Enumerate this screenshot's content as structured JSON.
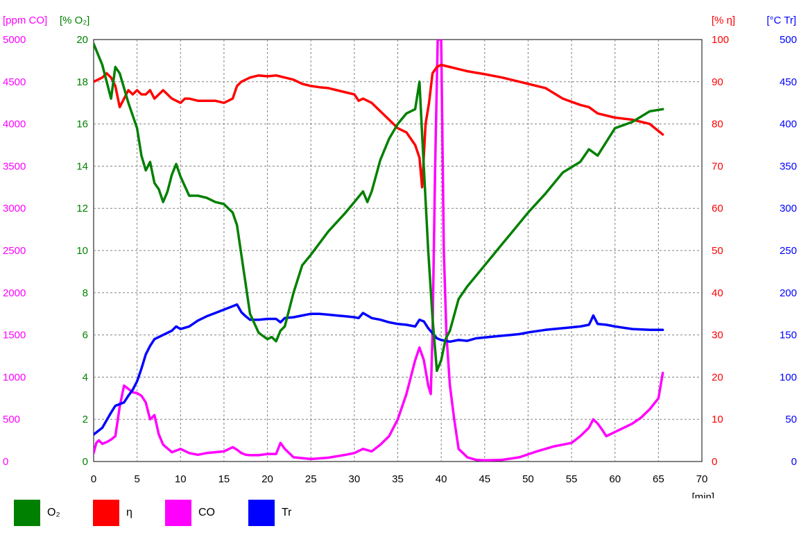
{
  "chart_data": {
    "type": "line",
    "axes": {
      "x": {
        "range": [
          0,
          70
        ],
        "ticks": [
          "0",
          "5",
          "10",
          "15",
          "20",
          "25",
          "30",
          "35",
          "40",
          "45",
          "50",
          "55",
          "60",
          "65",
          "70"
        ],
        "unit_label": "[min]"
      },
      "co": {
        "label": "[ppm CO]",
        "range": [
          0,
          5000
        ],
        "ticks": [
          "0",
          "500",
          "1000",
          "1500",
          "2000",
          "2500",
          "3000",
          "3500",
          "4000",
          "4500",
          "5000"
        ],
        "color": "#ff00ff"
      },
      "o2": {
        "label": "[% O₂]",
        "range": [
          0,
          20
        ],
        "ticks": [
          "0",
          "2",
          "4",
          "6",
          "8",
          "10",
          "12",
          "14",
          "16",
          "18",
          "20"
        ],
        "color": "#008000"
      },
      "eta": {
        "label": "[% η]",
        "range": [
          0,
          100
        ],
        "ticks": [
          "0",
          "10",
          "20",
          "30",
          "40",
          "50",
          "60",
          "70",
          "80",
          "90",
          "100"
        ],
        "color": "#ff0000"
      },
      "tr": {
        "label": "[°C Tr]",
        "range": [
          0,
          500
        ],
        "ticks": [
          "0",
          "50",
          "100",
          "150",
          "200",
          "250",
          "300",
          "350",
          "400",
          "450",
          "500"
        ],
        "color": "#0000ff"
      }
    },
    "grid": true,
    "legend_position": "bottom",
    "series": [
      {
        "name": "O₂",
        "axis": "o2",
        "color": "#008000",
        "x": [
          0,
          1,
          2,
          2.5,
          3,
          4,
          5,
          5.5,
          6,
          6.5,
          7,
          7.5,
          8,
          8.5,
          9,
          9.5,
          10,
          11,
          12,
          13,
          14,
          15,
          16,
          16.5,
          17,
          18,
          19,
          20,
          20.5,
          21,
          21.5,
          22,
          23,
          24,
          25,
          27,
          29,
          30,
          31,
          31.5,
          32,
          33,
          34,
          35,
          36,
          37,
          37.5,
          37.8,
          38.5,
          39,
          39.5,
          40,
          40.5,
          41,
          42,
          43,
          44,
          45,
          46,
          47,
          48,
          50,
          52,
          54,
          56,
          57,
          58,
          60,
          62,
          64,
          65.5
        ],
        "y": [
          19.8,
          18.8,
          17.2,
          18.7,
          18.4,
          17,
          15.8,
          14.5,
          13.8,
          14.2,
          13.2,
          12.9,
          12.3,
          12.8,
          13.6,
          14.1,
          13.5,
          12.6,
          12.6,
          12.5,
          12.3,
          12.2,
          11.8,
          11.2,
          9.8,
          7,
          6.1,
          5.8,
          5.9,
          5.7,
          6.2,
          6.4,
          8,
          9.3,
          9.8,
          10.9,
          11.8,
          12.3,
          12.8,
          12.3,
          12.8,
          14.3,
          15.3,
          16,
          16.5,
          16.7,
          18,
          15.5,
          10,
          6.8,
          4.3,
          4.8,
          5.8,
          6.2,
          7.7,
          8.3,
          8.8,
          9.3,
          9.8,
          10.3,
          10.8,
          11.8,
          12.7,
          13.7,
          14.2,
          14.8,
          14.5,
          15.8,
          16.1,
          16.6,
          16.7
        ]
      },
      {
        "name": "η",
        "axis": "eta",
        "color": "#ff0000",
        "x": [
          0,
          1,
          1.5,
          2,
          2.5,
          3,
          4,
          4.5,
          5,
          5.5,
          6,
          6.5,
          7,
          8,
          8.5,
          9,
          10,
          10.5,
          11,
          12,
          13,
          14,
          15,
          16,
          16.5,
          17,
          18,
          19,
          20,
          21,
          22,
          23,
          24,
          25,
          26,
          27,
          28,
          29,
          30,
          30.5,
          31,
          32,
          33,
          34,
          35,
          36,
          37,
          37.5,
          37.8,
          38.2,
          38.6,
          39,
          39.5,
          40,
          41,
          42,
          43,
          45,
          47,
          50,
          52,
          54,
          56,
          57,
          58,
          60,
          62,
          64,
          65.5
        ],
        "y": [
          90,
          91,
          92,
          91,
          89,
          84,
          88,
          87,
          88,
          87,
          87,
          88,
          86,
          88,
          87,
          86,
          85,
          86,
          86,
          85.5,
          85.5,
          85.5,
          85,
          86,
          89,
          90,
          91,
          91.5,
          91.3,
          91.5,
          91,
          90.5,
          89.5,
          89,
          88.7,
          88.5,
          88,
          87.5,
          87,
          85.5,
          86,
          85,
          83,
          81,
          79,
          78,
          75,
          72,
          65,
          80,
          85,
          92,
          93.5,
          94,
          93.5,
          93,
          92.5,
          91.8,
          91,
          89.5,
          88.5,
          86,
          84.5,
          84,
          82.5,
          81.5,
          81,
          80,
          77.5
        ]
      },
      {
        "name": "CO",
        "axis": "co",
        "color": "#ff00ff",
        "x": [
          0,
          0.3,
          0.6,
          1,
          1.5,
          2,
          2.5,
          3,
          3.5,
          4,
          4.5,
          5,
          5.5,
          6,
          6.5,
          7,
          7.5,
          8,
          9,
          10,
          11,
          12,
          13,
          14,
          15,
          16,
          16.5,
          17,
          17.5,
          18,
          19,
          20,
          21,
          21.5,
          22,
          23,
          25,
          27,
          29,
          30,
          31,
          32,
          33,
          34,
          35,
          36,
          37,
          37.5,
          38,
          38.5,
          38.8,
          39,
          39.3,
          39.6,
          40,
          40.3,
          40.6,
          41,
          41.5,
          42,
          42.5,
          43,
          44,
          45,
          47,
          49,
          51,
          53,
          55,
          56,
          57,
          57.5,
          58,
          58.5,
          59,
          60,
          61,
          62,
          63,
          64,
          65,
          65.5
        ],
        "y": [
          100,
          220,
          250,
          210,
          230,
          260,
          300,
          650,
          900,
          860,
          820,
          810,
          780,
          700,
          500,
          550,
          320,
          200,
          110,
          150,
          100,
          80,
          100,
          110,
          120,
          170,
          140,
          100,
          80,
          75,
          75,
          90,
          90,
          220,
          150,
          50,
          30,
          45,
          80,
          100,
          150,
          120,
          200,
          300,
          500,
          800,
          1200,
          1350,
          1200,
          900,
          800,
          1500,
          3500,
          5000,
          5000,
          2500,
          1500,
          900,
          500,
          150,
          100,
          50,
          20,
          15,
          20,
          50,
          120,
          180,
          220,
          300,
          400,
          500,
          450,
          380,
          300,
          350,
          400,
          450,
          520,
          620,
          750,
          1050
        ]
      },
      {
        "name": "Tr",
        "axis": "tr",
        "color": "#0000ff",
        "x": [
          0,
          1,
          2,
          2.5,
          3,
          3.5,
          4,
          4.5,
          5,
          5.5,
          6,
          6.5,
          7,
          8,
          9,
          9.5,
          10,
          11,
          12,
          13,
          14,
          15,
          16,
          16.5,
          17,
          17.5,
          18,
          19,
          20,
          21,
          21.5,
          22,
          23,
          24,
          25,
          26,
          27,
          28,
          29,
          30,
          30.5,
          31,
          32,
          33,
          34,
          35,
          36,
          37,
          37.5,
          38,
          38.5,
          39,
          39.5,
          40,
          41,
          42,
          43,
          44,
          45,
          46,
          47,
          48,
          49,
          50,
          52,
          54,
          56,
          57,
          57.2,
          57.5,
          58,
          59,
          60,
          62,
          64,
          65.5
        ],
        "y": [
          32,
          40,
          58,
          66,
          68,
          70,
          78,
          85,
          95,
          110,
          127,
          137,
          145,
          150,
          155,
          160,
          157,
          160,
          167,
          172,
          176,
          180,
          184,
          186,
          177,
          172,
          168,
          168,
          169,
          169,
          165,
          170,
          171,
          173,
          175,
          175,
          174,
          173,
          172,
          171,
          170,
          176,
          170,
          168,
          165,
          163,
          162,
          160,
          168,
          166,
          158,
          152,
          146,
          144,
          142,
          144,
          143,
          146,
          147,
          148,
          149,
          150,
          151,
          153,
          156,
          158,
          160,
          162,
          166,
          173,
          163,
          162,
          160,
          157,
          156,
          156
        ]
      }
    ]
  },
  "legend": [
    {
      "label": "O₂",
      "color": "#008000"
    },
    {
      "label": "η",
      "color": "#ff0000"
    },
    {
      "label": "CO",
      "color": "#ff00ff"
    },
    {
      "label": "Tr",
      "color": "#0000ff"
    }
  ]
}
